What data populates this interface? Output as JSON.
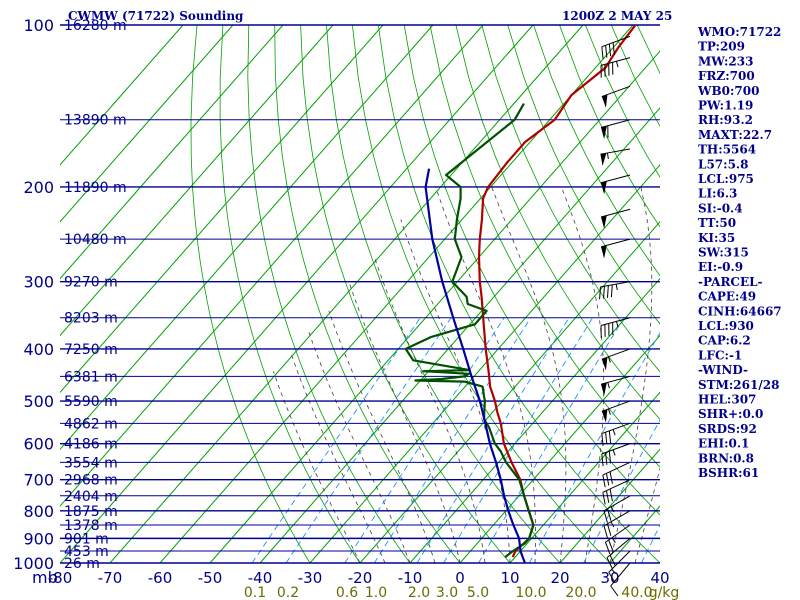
{
  "header": {
    "station": "CWMW (71722) Sounding",
    "time": "1200Z  2 MAY 25"
  },
  "chart_data": {
    "type": "skew-t",
    "pressure_ticks": [
      100,
      200,
      300,
      400,
      500,
      600,
      700,
      800,
      900,
      1000
    ],
    "pressure_axis_label": "mb",
    "temperature_ticks": [
      -80,
      -70,
      -60,
      -50,
      -40,
      -30,
      -20,
      -10,
      0,
      10,
      20,
      30,
      40
    ],
    "temperature_tick_labels": [
      "-80",
      "-70",
      "-60",
      "-50",
      "-40",
      "-30",
      "-20",
      "-10",
      "0",
      "10",
      "20",
      "30",
      "40"
    ],
    "mixing_ratio_labels": [
      "0.1",
      "0.2",
      "0.6",
      "1.0",
      "2.0",
      "3.0",
      "5.0",
      "10.0",
      "20.0",
      "40.0",
      "g/kg"
    ],
    "height_labels": [
      {
        "p": 100,
        "text": "16280 m"
      },
      {
        "p": 150,
        "text": "13890 m"
      },
      {
        "p": 200,
        "text": "11890 m"
      },
      {
        "p": 250,
        "text": "10480 m"
      },
      {
        "p": 300,
        "text": "9270 m"
      },
      {
        "p": 350,
        "text": "8203 m"
      },
      {
        "p": 400,
        "text": "7250 m"
      },
      {
        "p": 450,
        "text": "6381 m"
      },
      {
        "p": 500,
        "text": "5590 m"
      },
      {
        "p": 550,
        "text": "4862 m"
      },
      {
        "p": 600,
        "text": "4186 m"
      },
      {
        "p": 650,
        "text": "3554 m"
      },
      {
        "p": 700,
        "text": "2968 m"
      },
      {
        "p": 750,
        "text": "2404 m"
      },
      {
        "p": 800,
        "text": "1875 m"
      },
      {
        "p": 850,
        "text": "1378 m"
      },
      {
        "p": 900,
        "text": "901 m"
      },
      {
        "p": 950,
        "text": "453 m"
      },
      {
        "p": 1000,
        "text": "26 m"
      }
    ],
    "series": [
      {
        "role": "temperature",
        "color": "#b00000",
        "points": [
          [
            975,
            9.5
          ],
          [
            950,
            9.0
          ],
          [
            900,
            9.5
          ],
          [
            850,
            8.0
          ],
          [
            800,
            4.6
          ],
          [
            750,
            1.0
          ],
          [
            700,
            -2.6
          ],
          [
            650,
            -7.4
          ],
          [
            600,
            -12.2
          ],
          [
            550,
            -16.4
          ],
          [
            525,
            -19.0
          ],
          [
            500,
            -21.5
          ],
          [
            470,
            -25.0
          ],
          [
            440,
            -28.0
          ],
          [
            400,
            -32.5
          ],
          [
            370,
            -36.0
          ],
          [
            350,
            -38.5
          ],
          [
            320,
            -42.5
          ],
          [
            300,
            -45.5
          ],
          [
            270,
            -50.0
          ],
          [
            250,
            -53.0
          ],
          [
            230,
            -56.0
          ],
          [
            210,
            -59.5
          ],
          [
            200,
            -60.5
          ],
          [
            180,
            -61.0
          ],
          [
            165,
            -61.0
          ],
          [
            150,
            -59.0
          ],
          [
            135,
            -60.0
          ],
          [
            120,
            -58.0
          ],
          [
            110,
            -59.0
          ],
          [
            100,
            -59.5
          ]
        ]
      },
      {
        "role": "dewpoint",
        "color": "#005000",
        "points": [
          [
            975,
            8.0
          ],
          [
            950,
            8.5
          ],
          [
            920,
            9.5
          ],
          [
            900,
            9.5
          ],
          [
            850,
            8.0
          ],
          [
            800,
            4.6
          ],
          [
            750,
            1.0
          ],
          [
            700,
            -2.8
          ],
          [
            650,
            -8.5
          ],
          [
            620,
            -11.5
          ],
          [
            600,
            -14.0
          ],
          [
            560,
            -18.0
          ],
          [
            540,
            -20.5
          ],
          [
            520,
            -22.0
          ],
          [
            500,
            -23.5
          ],
          [
            490,
            -24.5
          ],
          [
            470,
            -26.5
          ],
          [
            460,
            -31.0
          ],
          [
            458,
            -41.0
          ],
          [
            455,
            -36.0
          ],
          [
            450,
            -32.0
          ],
          [
            445,
            -31.5
          ],
          [
            440,
            -41.0
          ],
          [
            438,
            -32.0
          ],
          [
            420,
            -45.0
          ],
          [
            400,
            -48.5
          ],
          [
            380,
            -45.5
          ],
          [
            360,
            -39.0
          ],
          [
            340,
            -39.0
          ],
          [
            330,
            -44.0
          ],
          [
            320,
            -45.5
          ],
          [
            300,
            -51.0
          ],
          [
            270,
            -53.5
          ],
          [
            250,
            -58.0
          ],
          [
            230,
            -61.0
          ],
          [
            210,
            -64.0
          ],
          [
            200,
            -66.0
          ],
          [
            190,
            -71.0
          ],
          [
            150,
            -67.0
          ],
          [
            140,
            -68.0
          ]
        ]
      },
      {
        "role": "parcel",
        "color": "#0000a0",
        "points": [
          [
            1000,
            13.0
          ],
          [
            975,
            11.5
          ],
          [
            950,
            10.0
          ],
          [
            900,
            7.5
          ],
          [
            850,
            4.0
          ],
          [
            800,
            0.5
          ],
          [
            750,
            -3.0
          ],
          [
            700,
            -6.5
          ],
          [
            650,
            -10.5
          ],
          [
            600,
            -15.0
          ],
          [
            550,
            -19.5
          ],
          [
            500,
            -24.5
          ],
          [
            450,
            -30.5
          ],
          [
            400,
            -37.0
          ],
          [
            350,
            -44.5
          ],
          [
            300,
            -53.0
          ],
          [
            250,
            -62.5
          ],
          [
            200,
            -73.0
          ],
          [
            185,
            -75.5
          ]
        ]
      }
    ],
    "wind_barbs": [
      {
        "p": 105,
        "dir": 250,
        "spd": 40
      },
      {
        "p": 115,
        "dir": 255,
        "spd": 45
      },
      {
        "p": 130,
        "dir": 250,
        "spd": 50
      },
      {
        "p": 150,
        "dir": 255,
        "spd": 60
      },
      {
        "p": 170,
        "dir": 260,
        "spd": 55
      },
      {
        "p": 190,
        "dir": 255,
        "spd": 50
      },
      {
        "p": 220,
        "dir": 255,
        "spd": 50
      },
      {
        "p": 250,
        "dir": 255,
        "spd": 50
      },
      {
        "p": 300,
        "dir": 260,
        "spd": 45
      },
      {
        "p": 350,
        "dir": 255,
        "spd": 45
      },
      {
        "p": 400,
        "dir": 250,
        "spd": 55
      },
      {
        "p": 450,
        "dir": 255,
        "spd": 55
      },
      {
        "p": 500,
        "dir": 250,
        "spd": 55
      },
      {
        "p": 550,
        "dir": 250,
        "spd": 35
      },
      {
        "p": 600,
        "dir": 250,
        "spd": 35
      },
      {
        "p": 650,
        "dir": 245,
        "spd": 30
      },
      {
        "p": 700,
        "dir": 245,
        "spd": 30
      },
      {
        "p": 750,
        "dir": 240,
        "spd": 25
      },
      {
        "p": 800,
        "dir": 240,
        "spd": 25
      },
      {
        "p": 850,
        "dir": 235,
        "spd": 25
      },
      {
        "p": 900,
        "dir": 230,
        "spd": 20
      },
      {
        "p": 950,
        "dir": 225,
        "spd": 15
      },
      {
        "p": 1000,
        "dir": 220,
        "spd": 10
      }
    ],
    "grid_lines": {
      "isotherms": "#00a000",
      "isobars": "#000090",
      "dry_adiabats": "#00a000",
      "moist_adiabats": "#404040",
      "mixing_ratio": "#1e90ff"
    }
  },
  "indices": [
    "WMO:71722",
    "TP:209",
    "MW:233",
    "FRZ:700",
    "WB0:700",
    "PW:1.19",
    "RH:93.2",
    "MAXT:22.7",
    "TH:5564",
    "L57:5.8",
    "LCL:975",
    "LI:6.3",
    "SI:-0.4",
    "TT:50",
    "KI:35",
    "SW:315",
    "EI:-0.9",
    "-PARCEL-",
    "CAPE:49",
    "CINH:64667",
    "LCL:930",
    "CAP:6.2",
    "LFC:-1",
    "-WIND-",
    "STM:261/28",
    "HEL:307",
    "SHR+:0.0",
    "SRDS:92",
    "EHI:0.1",
    "BRN:0.8",
    "BSHR:61"
  ]
}
